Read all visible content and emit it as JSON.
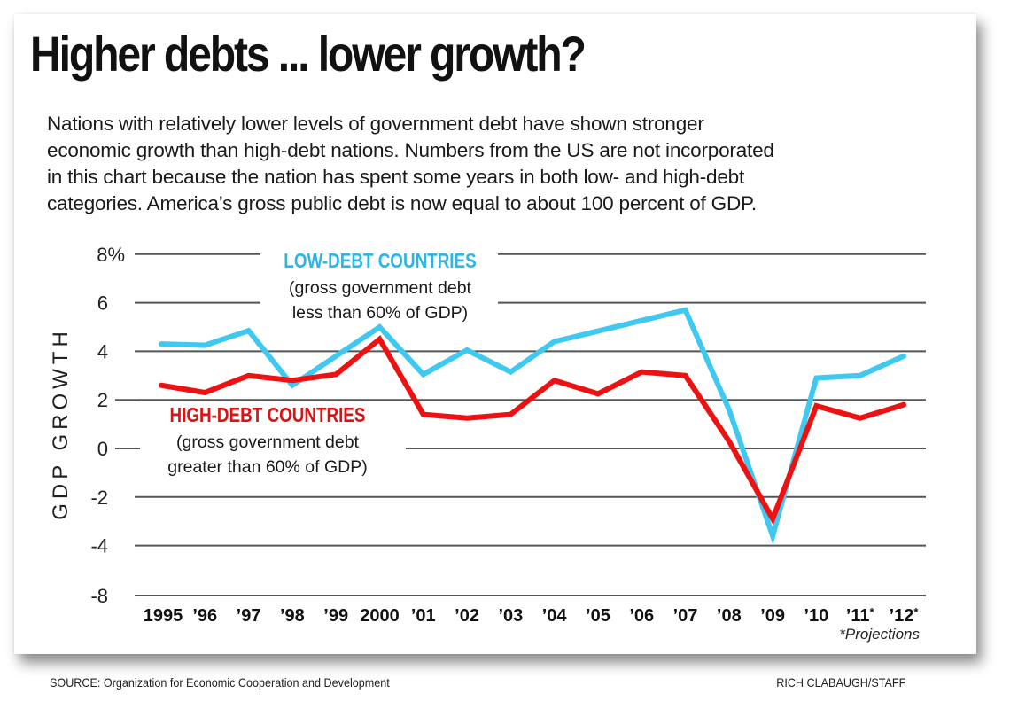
{
  "header": {
    "title": "Higher debts ... lower growth?",
    "subtitle_lines": [
      "Nations with relatively lower levels of government debt have shown stronger",
      "economic growth than high-debt nations. Numbers from the US are not incorporated",
      "in this chart because the nation has spent some years in both low- and high-debt",
      "categories. America’s gross public debt is now equal to about 100 percent of GDP."
    ]
  },
  "footer": {
    "source": "SOURCE: Organization for Economic Cooperation and Development",
    "credit": "RICH CLABAUGH/STAFF"
  },
  "colors": {
    "low_debt": "#3fc8f0",
    "high_debt": "#ee1111",
    "gridline": "#555555",
    "low_debt_label": "#2bb6e6",
    "high_debt_label": "#dd1111"
  },
  "chart_data": {
    "type": "line",
    "title": "Higher debts ... lower growth?",
    "xlabel": "",
    "ylabel": "GDP GROWTH",
    "ylim": [
      -8,
      8
    ],
    "y_ticks": [
      8,
      6,
      4,
      2,
      0,
      -2,
      -4,
      -8
    ],
    "y_tick_labels": [
      "8%",
      "6",
      "4",
      "2",
      "0",
      "-2",
      "-4",
      "-8"
    ],
    "grid": true,
    "categories": [
      "1995",
      "’96",
      "’97",
      "’98",
      "’99",
      "2000",
      "’01",
      "’02",
      "’03",
      "’04",
      "’05",
      "’06",
      "’07",
      "’08",
      "’09",
      "’10",
      "’11*",
      "’12*"
    ],
    "footnote": "*Projections",
    "series": [
      {
        "name": "LOW-DEBT COUNTRIES",
        "description_lines": [
          "(gross government debt",
          "less than 60% of GDP)"
        ],
        "values": [
          4.3,
          4.25,
          4.85,
          2.6,
          null,
          5.0,
          3.05,
          4.05,
          3.15,
          4.4,
          null,
          null,
          5.7,
          1.6,
          -3.6,
          2.9,
          3.0,
          3.8
        ]
      },
      {
        "name": "HIGH-DEBT COUNTRIES",
        "description_lines": [
          "(gross government debt",
          "greater than 60% of GDP)"
        ],
        "values": [
          2.6,
          2.3,
          3.0,
          2.8,
          3.05,
          4.5,
          1.4,
          1.25,
          1.4,
          2.8,
          2.25,
          3.15,
          3.0,
          0.3,
          -2.9,
          1.75,
          1.25,
          1.8
        ]
      }
    ],
    "legend": "inline-labels"
  }
}
